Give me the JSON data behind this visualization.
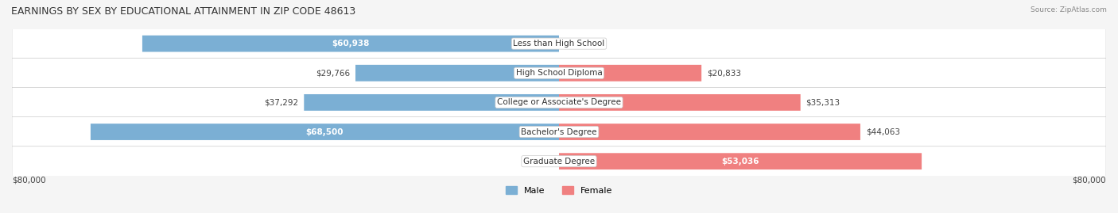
{
  "title": "EARNINGS BY SEX BY EDUCATIONAL ATTAINMENT IN ZIP CODE 48613",
  "source": "Source: ZipAtlas.com",
  "categories": [
    "Less than High School",
    "High School Diploma",
    "College or Associate's Degree",
    "Bachelor's Degree",
    "Graduate Degree"
  ],
  "male_values": [
    60938,
    29766,
    37292,
    68500,
    0
  ],
  "female_values": [
    0,
    20833,
    35313,
    44063,
    53036
  ],
  "male_color": "#7bafd4",
  "female_color": "#f08080",
  "male_label_color": "#ffffff",
  "female_label_color": "#ffffff",
  "male_label_inside": [
    true,
    false,
    false,
    true,
    false
  ],
  "female_label_inside": [
    false,
    false,
    false,
    false,
    true
  ],
  "axis_max": 80000,
  "xlabel_left": "$80,000",
  "xlabel_right": "$80,000",
  "bg_color": "#f5f5f5",
  "row_bg": "#ffffff",
  "title_fontsize": 9,
  "label_fontsize": 7.5,
  "category_fontsize": 7.5,
  "legend_fontsize": 8
}
